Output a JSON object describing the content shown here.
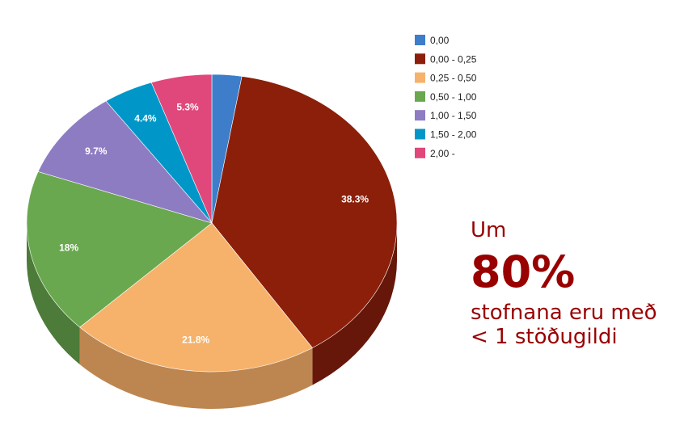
{
  "chart_data": {
    "type": "pie",
    "style": "3d",
    "legend_position": "top-right",
    "slices": [
      {
        "label": "0,00",
        "value": 2.6,
        "color": "#3D7DCA",
        "dark": "#2b5a92",
        "data_label": ""
      },
      {
        "label": "0,00 - 0,25",
        "value": 38.3,
        "color": "#8B1F0A",
        "dark": "#66170a",
        "data_label": "38.3%"
      },
      {
        "label": "0,25 - 0,50",
        "value": 21.8,
        "color": "#F6B26B",
        "dark": "#bd8650",
        "data_label": "21.8%"
      },
      {
        "label": "0,50 - 1,00",
        "value": 18,
        "color": "#6AA84F",
        "dark": "#4d7b39",
        "data_label": "18%"
      },
      {
        "label": "1,00 - 1,50",
        "value": 9.7,
        "color": "#8E7CC3",
        "dark": "#67598f",
        "data_label": "9.7%"
      },
      {
        "label": "1,50 - 2,00",
        "value": 4.4,
        "color": "#0097C8",
        "dark": "#006f93",
        "data_label": "4.4%"
      },
      {
        "label": "2,00 -",
        "value": 5.3,
        "color": "#E0477B",
        "dark": "#a4345a",
        "data_label": "5.3%"
      }
    ]
  },
  "callout": {
    "prefix": "Um",
    "headline": "80%",
    "line1": "stofnana eru með",
    "line2": "< 1 stöðugildi"
  }
}
